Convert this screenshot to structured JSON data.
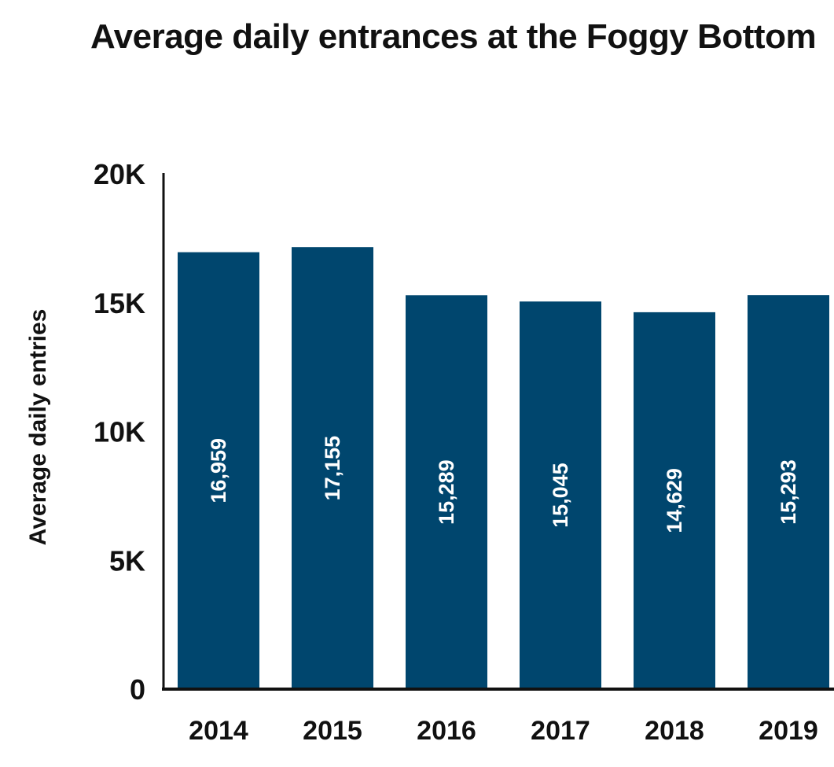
{
  "chart_data": {
    "type": "bar",
    "title": "Average daily entrances at the Foggy Bottom",
    "xlabel": "",
    "ylabel": "Average daily entries",
    "categories": [
      "2014",
      "2015",
      "2016",
      "2017",
      "2018",
      "2019"
    ],
    "values": [
      16959,
      17155,
      15289,
      15045,
      14629,
      15293
    ],
    "value_labels": [
      "16,959",
      "17,155",
      "15,289",
      "15,045",
      "14,629",
      "15,293"
    ],
    "ylim": [
      0,
      20000
    ],
    "yticks": [
      0,
      5000,
      10000,
      15000,
      20000
    ],
    "ytick_labels": [
      "0",
      "5K",
      "10K",
      "15K",
      "20K"
    ],
    "bar_color": "#00466e",
    "grid": false
  }
}
